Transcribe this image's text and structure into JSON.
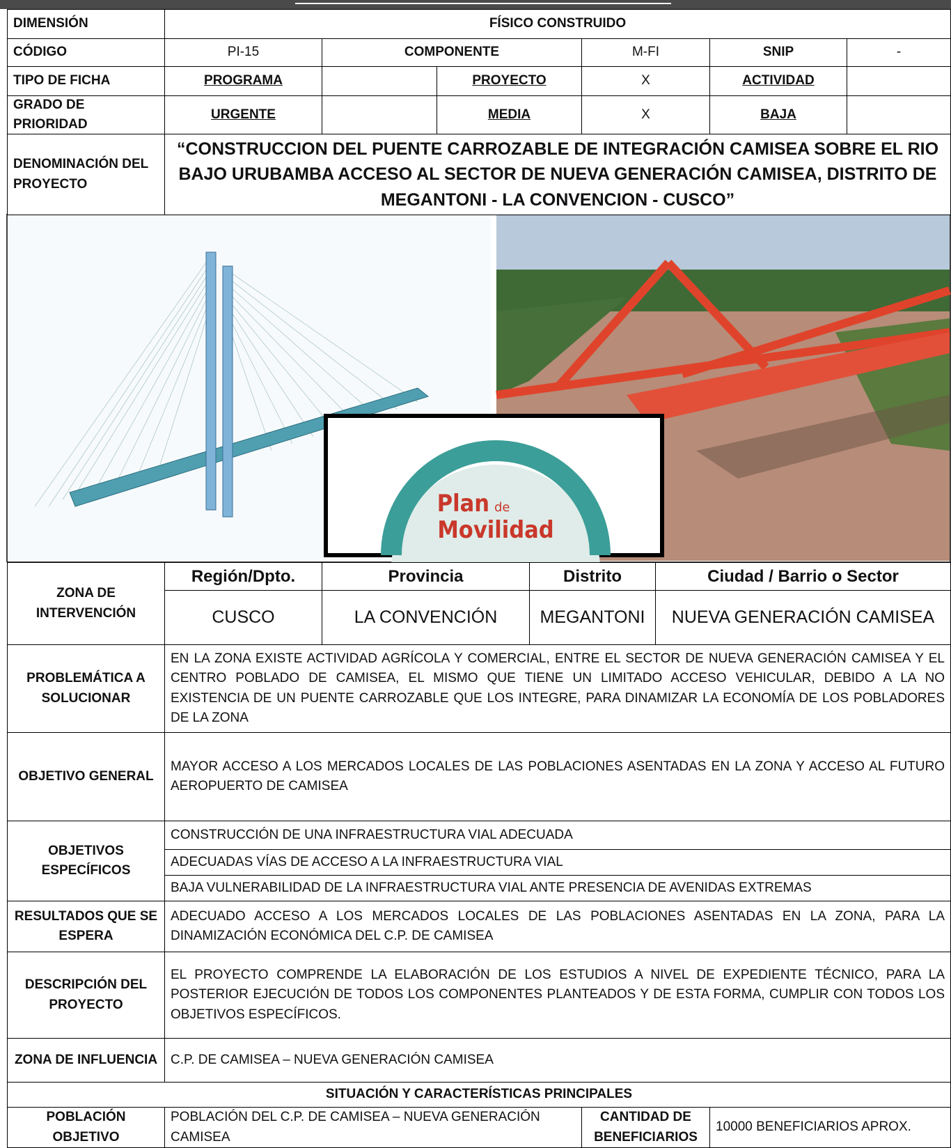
{
  "header": {
    "dimension_label": "DIMENSIÓN",
    "dimension_value": "FÍSICO CONSTRUIDO"
  },
  "codigo": {
    "label": "CÓDIGO",
    "value": "PI-15",
    "componente_label": "COMPONENTE",
    "componente_value": "M-FI",
    "snip_label": "SNIP",
    "snip_value": "-"
  },
  "tipo_ficha": {
    "label": "TIPO DE FICHA",
    "options": [
      {
        "label": "PROGRAMA"
      },
      {
        "label": "PROYECTO",
        "mark": "X"
      },
      {
        "label": "ACTIVIDAD"
      }
    ]
  },
  "prioridad": {
    "label": "GRADO DE PRIORIDAD",
    "options": [
      {
        "label": "URGENTE"
      },
      {
        "label": "MEDIA",
        "mark": "X"
      },
      {
        "label": "BAJA"
      }
    ]
  },
  "denominacion": {
    "label": "DENOMINACIÓN DEL PROYECTO",
    "value": "“CONSTRUCCION DEL PUENTE CARROZABLE DE INTEGRACIÓN CAMISEA SOBRE EL RIO BAJO URUBAMBA ACCESO AL SECTOR DE NUEVA GENERACIÓN CAMISEA, DISTRITO DE MEGANTONI - LA CONVENCION - CUSCO”"
  },
  "logo": {
    "word1": "Plan",
    "small": "de",
    "word2": "Movilidad"
  },
  "zona_intervencion": {
    "label": "ZONA DE INTERVENCIÓN",
    "headers": [
      "Región/Dpto.",
      "Provincia",
      "Distrito",
      "Ciudad / Barrio o Sector"
    ],
    "values": [
      "CUSCO",
      "LA CONVENCIÓN",
      "MEGANTONI",
      "NUEVA GENERACIÓN CAMISEA"
    ]
  },
  "problematica": {
    "label": "PROBLEMÁTICA A SOLUCIONAR",
    "text": "EN LA ZONA EXISTE ACTIVIDAD AGRÍCOLA Y COMERCIAL, ENTRE EL SECTOR DE NUEVA GENERACIÓN CAMISEA Y EL CENTRO POBLADO DE CAMISEA, EL MISMO QUE TIENE UN LIMITADO ACCESO VEHICULAR, DEBIDO A LA NO EXISTENCIA DE UN PUENTE CARROZABLE QUE LOS INTEGRE, PARA DINAMIZAR LA ECONOMÍA DE LOS POBLADORES DE LA ZONA"
  },
  "objetivo_general": {
    "label": "OBJETIVO GENERAL",
    "text": "MAYOR ACCESO A LOS MERCADOS LOCALES DE LAS POBLACIONES ASENTADAS EN LA ZONA Y ACCESO AL FUTURO AEROPUERTO DE CAMISEA"
  },
  "objetivos_especificos": {
    "label": "OBJETIVOS ESPECÍFICOS",
    "items": [
      "CONSTRUCCIÓN DE UNA INFRAESTRUCTURA VIAL ADECUADA",
      "ADECUADAS VÍAS DE ACCESO A LA INFRAESTRUCTURA VIAL",
      "BAJA VULNERABILIDAD DE LA INFRAESTRUCTURA VIAL ANTE PRESENCIA DE AVENIDAS EXTREMAS"
    ]
  },
  "resultados": {
    "label": "RESULTADOS QUE SE ESPERA",
    "text": "ADECUADO ACCESO A LOS MERCADOS LOCALES DE LAS POBLACIONES ASENTADAS EN LA ZONA, PARA LA DINAMIZACIÓN ECONÓMICA DEL C.P. DE CAMISEA"
  },
  "descripcion": {
    "label": "DESCRIPCIÓN DEL PROYECTO",
    "text": "EL PROYECTO COMPRENDE LA ELABORACIÓN DE LOS ESTUDIOS A NIVEL DE EXPEDIENTE TÉCNICO, PARA LA POSTERIOR EJECUCIÓN DE TODOS LOS COMPONENTES PLANTEADOS Y DE ESTA FORMA, CUMPLIR CON TODOS LOS OBJETIVOS ESPECÍFICOS."
  },
  "zona_influencia": {
    "label": "ZONA DE INFLUENCIA",
    "text": "C.P. DE CAMISEA – NUEVA GENERACIÓN CAMISEA"
  },
  "situacion": {
    "title": "SITUACIÓN Y CARACTERÍSTICAS PRINCIPALES"
  },
  "poblacion": {
    "label": "POBLACIÓN OBJETIVO",
    "value": "POBLACIÓN DEL C.P. DE CAMISEA – NUEVA GENERACIÓN CAMISEA",
    "cantidad_label": "CANTIDAD DE BENEFICIARIOS",
    "cantidad_value": "10000 BENEFICIARIOS APROX."
  }
}
